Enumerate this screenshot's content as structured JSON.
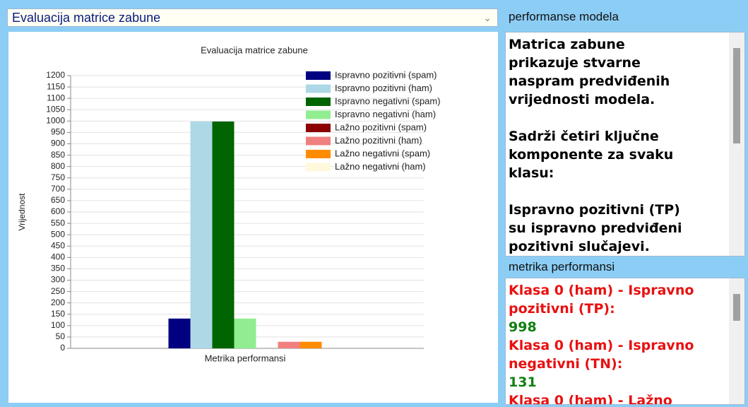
{
  "dropdown": {
    "selected": "Evaluacija matrice zabune"
  },
  "chart_data": {
    "type": "bar",
    "title": "Evaluacija matrice zabune",
    "x_label": "Metrika performansi",
    "y_label": "Vrijednost",
    "categories": [
      null
    ],
    "series": [
      {
        "name": "Ispravno pozitivni (spam)",
        "color": "#000080",
        "values": [
          131
        ]
      },
      {
        "name": "Ispravno pozitivni (ham)",
        "color": "#add8e6",
        "values": [
          998
        ]
      },
      {
        "name": "Ispravno negativni (spam)",
        "color": "#006400",
        "values": [
          998
        ]
      },
      {
        "name": "Ispravno negativni (ham)",
        "color": "#90ee90",
        "values": [
          131
        ]
      },
      {
        "name": "Lažno pozitivni (spam)",
        "color": "#8b0000",
        "values": [
          0
        ]
      },
      {
        "name": "Lažno pozitivni (ham)",
        "color": "#f08080",
        "values": [
          29
        ]
      },
      {
        "name": "Lažno negativni (spam)",
        "color": "#ff8c00",
        "values": [
          29
        ]
      },
      {
        "name": "Lažno negativni (ham)",
        "color": "#fff8dc",
        "values": [
          0
        ]
      }
    ],
    "ylim": [
      0,
      1200
    ],
    "yticks": [
      0,
      50,
      100,
      150,
      200,
      250,
      300,
      350,
      400,
      450,
      500,
      550,
      600,
      650,
      700,
      750,
      800,
      850,
      900,
      950,
      1000,
      1050,
      1100,
      1150,
      1200
    ],
    "grid": true,
    "legend": "top-right"
  },
  "performance_panel": {
    "title": "performanse modela",
    "paragraphs": [
      [
        "Matrica zabune",
        "prikazuje stvarne",
        "naspram predviđenih",
        "vrijednosti modela."
      ],
      [
        "Sadrži četiri ključne",
        "komponente za svaku",
        "klasu:"
      ],
      [
        "Ispravno pozitivni (TP)",
        "su ispravno predviđeni",
        "pozitivni slučajevi."
      ]
    ]
  },
  "metrics_panel": {
    "title": "metrika performansi",
    "items": [
      {
        "label": [
          "Klasa 0 (ham) - Ispravno",
          "pozitivni (TP):"
        ],
        "value": 998
      },
      {
        "label": [
          "Klasa 0 (ham) - Ispravno",
          "negativni (TN):"
        ],
        "value": 131
      },
      {
        "label": [
          "Klasa 0 (ham) - Lažno"
        ]
      }
    ]
  }
}
